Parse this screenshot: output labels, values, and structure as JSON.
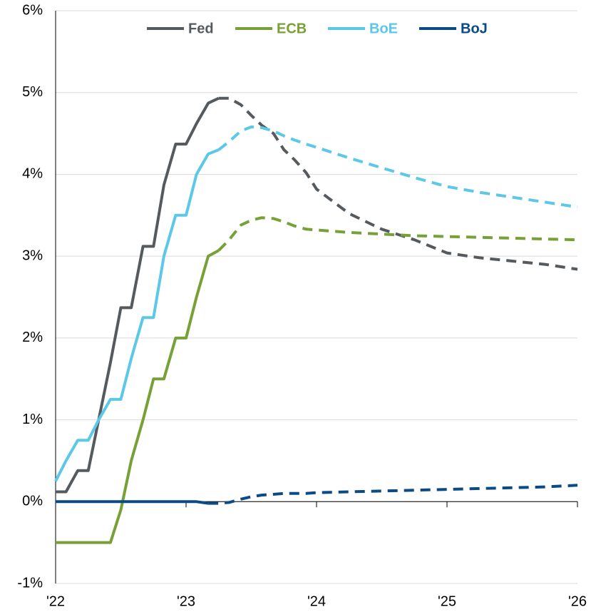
{
  "chart_data": {
    "type": "line",
    "x": [
      2022,
      2022.08,
      2022.17,
      2022.25,
      2022.33,
      2022.42,
      2022.5,
      2022.58,
      2022.67,
      2022.75,
      2022.83,
      2022.92,
      2023,
      2023.08,
      2023.17,
      2023.25,
      2023.33,
      2023.42,
      2023.5,
      2023.58,
      2023.67,
      2023.75,
      2023.83,
      2023.92,
      2024,
      2024.25,
      2024.5,
      2024.75,
      2025,
      2025.25,
      2025.5,
      2025.75,
      2026
    ],
    "series": [
      {
        "name": "Fed",
        "color": "#555a5e",
        "forecast_from": 2023.25,
        "values": [
          0.12,
          0.12,
          0.38,
          0.38,
          1.0,
          1.7,
          2.37,
          2.37,
          3.12,
          3.12,
          3.87,
          4.37,
          4.37,
          4.62,
          4.87,
          4.93,
          4.93,
          4.85,
          4.72,
          4.6,
          4.5,
          4.3,
          4.18,
          4.02,
          3.82,
          3.52,
          3.33,
          3.2,
          3.04,
          2.98,
          2.94,
          2.9,
          2.84
        ]
      },
      {
        "name": "ECB",
        "color": "#77a136",
        "forecast_from": 2023.25,
        "values": [
          -0.5,
          -0.5,
          -0.5,
          -0.5,
          -0.5,
          -0.5,
          -0.1,
          0.5,
          1.0,
          1.5,
          1.5,
          2.0,
          2.0,
          2.5,
          3.0,
          3.07,
          3.2,
          3.38,
          3.44,
          3.47,
          3.46,
          3.42,
          3.37,
          3.33,
          3.32,
          3.29,
          3.27,
          3.25,
          3.24,
          3.23,
          3.22,
          3.21,
          3.2
        ]
      },
      {
        "name": "BoE",
        "color": "#5bc8e8",
        "forecast_from": 2023.25,
        "values": [
          0.25,
          0.5,
          0.75,
          0.75,
          1.0,
          1.25,
          1.25,
          1.75,
          2.25,
          2.25,
          3.0,
          3.5,
          3.5,
          4.0,
          4.25,
          4.3,
          4.4,
          4.53,
          4.58,
          4.57,
          4.53,
          4.47,
          4.42,
          4.37,
          4.33,
          4.2,
          4.08,
          3.96,
          3.85,
          3.78,
          3.72,
          3.66,
          3.6
        ]
      },
      {
        "name": "BoJ",
        "color": "#0a4a85",
        "forecast_from": 2023.17,
        "values": [
          0,
          0,
          0,
          0,
          0,
          0,
          0,
          0,
          0,
          0,
          0,
          0,
          0,
          0,
          -0.02,
          -0.02,
          -0.01,
          0.03,
          0.06,
          0.08,
          0.09,
          0.1,
          0.1,
          0.1,
          0.11,
          0.12,
          0.13,
          0.14,
          0.15,
          0.16,
          0.17,
          0.18,
          0.2
        ]
      }
    ],
    "xlim": [
      2022,
      2026
    ],
    "xticks": [
      {
        "value": 2022,
        "label": "'22"
      },
      {
        "value": 2023,
        "label": "'23"
      },
      {
        "value": 2024,
        "label": "'24"
      },
      {
        "value": 2025,
        "label": "'25"
      },
      {
        "value": 2026,
        "label": "'26"
      }
    ],
    "ylim": [
      -1,
      6
    ],
    "yticks": [
      {
        "value": -1,
        "label": "-1%"
      },
      {
        "value": 0,
        "label": "0%"
      },
      {
        "value": 1,
        "label": "1%"
      },
      {
        "value": 2,
        "label": "2%"
      },
      {
        "value": 3,
        "label": "3%"
      },
      {
        "value": 4,
        "label": "4%"
      },
      {
        "value": 5,
        "label": "5%"
      },
      {
        "value": 6,
        "label": "6%"
      }
    ],
    "grid": true,
    "legend": "top"
  }
}
